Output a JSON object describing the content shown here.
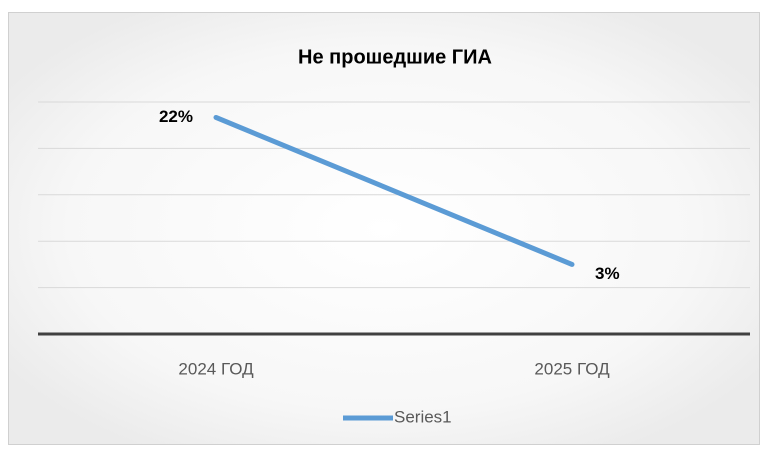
{
  "chart_data": {
    "type": "line",
    "title": "Не прошедшие ГИА",
    "categories": [
      "2024 ГОД",
      "2025 ГОД"
    ],
    "series": [
      {
        "name": "Series1",
        "color": "#5b9bd5",
        "values": [
          22,
          3
        ],
        "value_labels": [
          "22%",
          "3%"
        ]
      }
    ],
    "ylim": [
      -6,
      24
    ],
    "yticks": [
      -6,
      0,
      6,
      12,
      18,
      24
    ],
    "grid": true,
    "legend": "bottom"
  }
}
